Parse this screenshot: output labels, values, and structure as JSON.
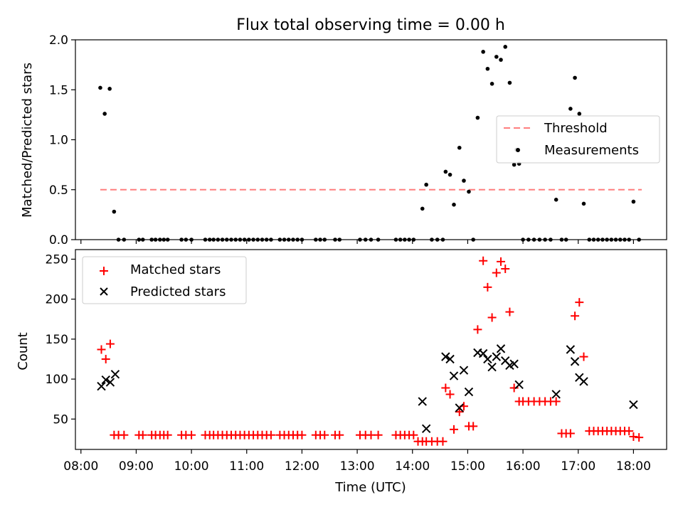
{
  "title": "Flux total observing time = 0.00 h",
  "chart_data": [
    {
      "type": "scatter",
      "ylabel": "Matched/Predicted stars",
      "ylim": [
        0,
        2.0
      ],
      "yticks": [
        0.0,
        0.5,
        1.0,
        1.5,
        2.0
      ],
      "ytick_labels": [
        "0.0",
        "0.5",
        "1.0",
        "1.5",
        "2.0"
      ],
      "legend": {
        "placement": "right",
        "entries": [
          "Threshold",
          "Measurements"
        ]
      },
      "threshold": {
        "name": "Threshold",
        "value": 0.5,
        "x": [
          8.35,
          18.15
        ],
        "color": "#ff7f7f"
      },
      "series": [
        {
          "name": "Measurements",
          "color": "#000000",
          "x": [
            8.35,
            8.43,
            8.52,
            8.6,
            8.68,
            8.78,
            9.05,
            9.12,
            9.28,
            9.35,
            9.43,
            9.5,
            9.57,
            9.82,
            9.9,
            10.0,
            10.25,
            10.33,
            10.4,
            10.48,
            10.56,
            10.64,
            10.72,
            10.8,
            10.88,
            10.96,
            11.04,
            11.12,
            11.2,
            11.28,
            11.36,
            11.44,
            11.6,
            11.68,
            11.76,
            11.84,
            11.92,
            12.0,
            12.25,
            12.33,
            12.41,
            12.6,
            12.68,
            13.05,
            13.15,
            13.25,
            13.38,
            13.7,
            13.78,
            13.86,
            13.94,
            14.02,
            14.18,
            14.25,
            14.35,
            14.45,
            14.55,
            14.6,
            14.68,
            14.75,
            14.85,
            14.93,
            15.02,
            15.1,
            15.18,
            15.28,
            15.36,
            15.44,
            15.52,
            15.6,
            15.68,
            15.76,
            15.84,
            15.88,
            15.93,
            16.0,
            16.1,
            16.2,
            16.3,
            16.4,
            16.5,
            16.6,
            16.7,
            16.78,
            16.86,
            16.94,
            17.02,
            17.1,
            17.2,
            17.28,
            17.36,
            17.44,
            17.52,
            17.6,
            17.68,
            17.76,
            17.84,
            17.92,
            18.0,
            18.1
          ],
          "y": [
            1.52,
            1.26,
            1.51,
            0.28,
            0.0,
            0.0,
            0.0,
            0.0,
            0.0,
            0.0,
            0.0,
            0.0,
            0.0,
            0.0,
            0.0,
            0.0,
            0.0,
            0.0,
            0.0,
            0.0,
            0.0,
            0.0,
            0.0,
            0.0,
            0.0,
            0.0,
            0.0,
            0.0,
            0.0,
            0.0,
            0.0,
            0.0,
            0.0,
            0.0,
            0.0,
            0.0,
            0.0,
            0.0,
            0.0,
            0.0,
            0.0,
            0.0,
            0.0,
            0.0,
            0.0,
            0.0,
            0.0,
            0.0,
            0.0,
            0.0,
            0.0,
            0.0,
            0.31,
            0.55,
            0.0,
            0.0,
            0.0,
            0.68,
            0.65,
            0.35,
            0.92,
            0.59,
            0.48,
            0.0,
            1.22,
            1.88,
            1.71,
            1.56,
            1.83,
            1.8,
            1.93,
            1.57,
            0.75,
            0.9,
            0.76,
            0.0,
            0.0,
            0.0,
            0.0,
            0.0,
            0.0,
            0.4,
            0.0,
            0.0,
            1.31,
            1.62,
            1.26,
            0.36,
            0.0,
            0.0,
            0.0,
            0.0,
            0.0,
            0.0,
            0.0,
            0.0,
            0.0,
            0.0,
            0.38,
            0.0
          ]
        }
      ]
    },
    {
      "type": "scatter",
      "xlabel": "Time (UTC)",
      "ylabel": "Count",
      "xlim": [
        7.9,
        18.6
      ],
      "xticks": [
        8,
        9,
        10,
        11,
        12,
        13,
        14,
        15,
        16,
        17,
        18
      ],
      "xtick_labels": [
        "08:00",
        "09:00",
        "10:00",
        "11:00",
        "12:00",
        "13:00",
        "14:00",
        "15:00",
        "16:00",
        "17:00",
        "18:00"
      ],
      "ylim": [
        12,
        262
      ],
      "yticks": [
        50,
        100,
        150,
        200,
        250
      ],
      "ytick_labels": [
        "50",
        "100",
        "150",
        "200",
        "250"
      ],
      "legend": {
        "placement": "top-left",
        "entries": [
          "Matched stars",
          "Predicted stars"
        ]
      },
      "series": [
        {
          "name": "Matched stars",
          "marker": "+",
          "color": "#ff0000",
          "x": [
            8.37,
            8.45,
            8.53,
            8.6,
            8.68,
            8.78,
            9.05,
            9.12,
            9.28,
            9.35,
            9.43,
            9.5,
            9.57,
            9.82,
            9.9,
            10.0,
            10.25,
            10.33,
            10.4,
            10.48,
            10.56,
            10.64,
            10.72,
            10.8,
            10.88,
            10.96,
            11.04,
            11.12,
            11.2,
            11.28,
            11.36,
            11.44,
            11.6,
            11.68,
            11.76,
            11.84,
            11.92,
            12.0,
            12.25,
            12.33,
            12.41,
            12.6,
            12.68,
            13.05,
            13.15,
            13.25,
            13.38,
            13.7,
            13.78,
            13.86,
            13.94,
            14.02,
            14.1,
            14.18,
            14.25,
            14.35,
            14.45,
            14.55,
            14.6,
            14.68,
            14.75,
            14.85,
            14.93,
            15.02,
            15.1,
            15.18,
            15.28,
            15.36,
            15.44,
            15.52,
            15.6,
            15.68,
            15.76,
            15.84,
            15.93,
            16.0,
            16.1,
            16.2,
            16.3,
            16.4,
            16.5,
            16.6,
            16.7,
            16.78,
            16.86,
            16.94,
            17.02,
            17.1,
            17.2,
            17.28,
            17.36,
            17.44,
            17.52,
            17.6,
            17.68,
            17.76,
            17.84,
            17.92,
            18.0,
            18.1
          ],
          "y": [
            137,
            125,
            144,
            30,
            30,
            30,
            30,
            30,
            30,
            30,
            30,
            30,
            30,
            30,
            30,
            30,
            30,
            30,
            30,
            30,
            30,
            30,
            30,
            30,
            30,
            30,
            30,
            30,
            30,
            30,
            30,
            30,
            30,
            30,
            30,
            30,
            30,
            30,
            30,
            30,
            30,
            30,
            30,
            30,
            30,
            30,
            30,
            30,
            30,
            30,
            30,
            30,
            22,
            22,
            22,
            22,
            22,
            22,
            89,
            81,
            37,
            59,
            66,
            41,
            41,
            162,
            248,
            215,
            177,
            233,
            247,
            238,
            184,
            89,
            72,
            72,
            72,
            72,
            72,
            72,
            72,
            72,
            32,
            32,
            32,
            179,
            196,
            128,
            35,
            35,
            35,
            35,
            35,
            35,
            35,
            35,
            35,
            35,
            28,
            27
          ]
        },
        {
          "name": "Predicted stars",
          "marker": "x",
          "color": "#000000",
          "x": [
            8.37,
            8.45,
            8.53,
            8.62,
            14.18,
            14.25,
            14.6,
            14.68,
            14.75,
            14.85,
            14.93,
            15.02,
            15.18,
            15.28,
            15.36,
            15.44,
            15.52,
            15.6,
            15.68,
            15.76,
            15.84,
            15.93,
            16.6,
            16.86,
            16.94,
            17.02,
            17.1,
            18.0
          ],
          "y": [
            91,
            99,
            96,
            106,
            72,
            38,
            128,
            125,
            104,
            64,
            111,
            84,
            133,
            132,
            125,
            115,
            128,
            138,
            123,
            117,
            119,
            93,
            81,
            137,
            122,
            102,
            97,
            68
          ]
        }
      ]
    }
  ]
}
